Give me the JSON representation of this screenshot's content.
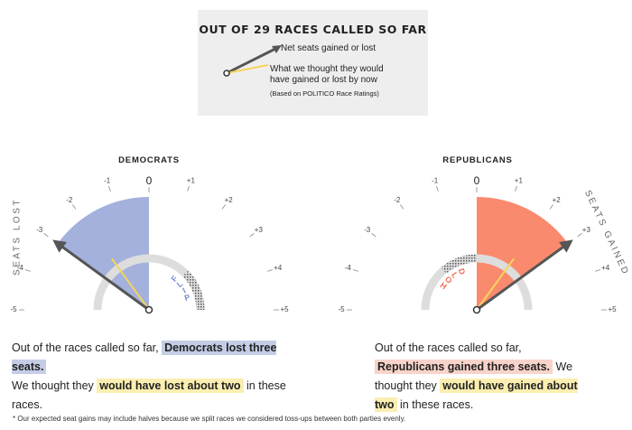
{
  "legend": {
    "title": "OUT OF 29 RACES CALLED SO FAR",
    "actual_label": "Net seats gained or lost",
    "expected_label": "What we thought they would have gained or lost by now",
    "note": "(Based on POLITICO Race Ratings)"
  },
  "chart_data": [
    {
      "type": "gauge",
      "title": "DEMOCRATS",
      "side_label": "SEATS LOST",
      "ticks": [
        "-5",
        "-4",
        "-3",
        "-2",
        "-1",
        "0",
        "+1",
        "+2",
        "+3",
        "+4",
        "+5"
      ],
      "range": [
        -5,
        5
      ],
      "actual": -3,
      "expected": -2,
      "arc_label": "FLIP",
      "colors": {
        "fill": "#a3b1dc",
        "needle": "#555555",
        "expected": "#f5d45b",
        "arc": "#dddddd"
      }
    },
    {
      "type": "gauge",
      "title": "REPUBLICANS",
      "side_label": "SEATS GAINED",
      "ticks": [
        "-5",
        "-4",
        "-3",
        "-2",
        "-1",
        "0",
        "+1",
        "+2",
        "+3",
        "+4",
        "+5"
      ],
      "range": [
        -5,
        5
      ],
      "actual": 3,
      "expected": 2,
      "arc_label": "HOLD",
      "colors": {
        "fill": "#f98a6e",
        "needle": "#555555",
        "expected": "#f5d45b",
        "arc": "#dddddd"
      }
    }
  ],
  "summaries": {
    "dem": {
      "p1": "Out of the races called so far,",
      "h1": "Democrats lost three seats.",
      "p2": "We thought they",
      "h2": "would have lost about two",
      "p3": "in these races."
    },
    "rep": {
      "p1": "Out of the races called so far,",
      "h1": "Republicans gained three seats.",
      "p2": "We thought they",
      "h2": "would have gained about two",
      "p3": "in these races."
    }
  },
  "footnote": "* Our expected seat gains may include halves because we split races we considered toss-ups between both parties evenly."
}
